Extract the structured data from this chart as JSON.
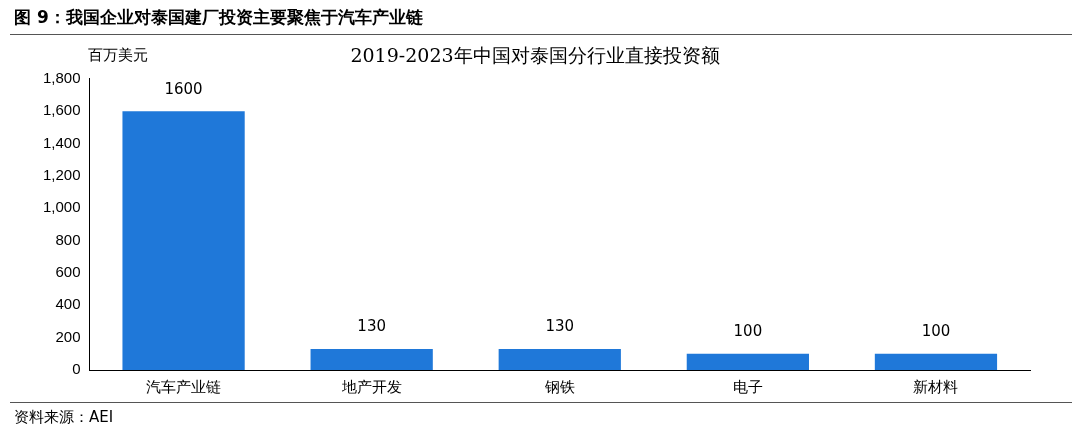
{
  "chart_data": {
    "type": "bar",
    "title": "图 9：我国企业对泰国建厂投资主要聚焦于汽车产业链",
    "subtitle": "2019-2023年中国对泰国分行业直接投资额",
    "ylabel": "百万美元",
    "categories": [
      "汽车产业链",
      "地产开发",
      "钢铁",
      "电子",
      "新材料"
    ],
    "values": [
      1600,
      130,
      130,
      100,
      100
    ],
    "color": "#1f78d9",
    "ylim": [
      0,
      1800
    ],
    "yticks": [
      0,
      {
        "value": 200,
        "label": "200"
      },
      {
        "value": 400,
        "label": "400"
      },
      {
        "value": 600,
        "label": "600"
      },
      {
        "value": 800,
        "label": "800"
      },
      {
        "value": 1000,
        "label": "1,000"
      },
      {
        "value": 1200,
        "label": "1,200"
      },
      {
        "value": 1400,
        "label": "1,400"
      },
      {
        "value": 1600,
        "label": "1,600"
      },
      {
        "value": 1800,
        "label": "1,800"
      }
    ],
    "grid": false,
    "legend": false,
    "data_labels": true,
    "annotations": [
      "资料来源：AEI"
    ]
  }
}
